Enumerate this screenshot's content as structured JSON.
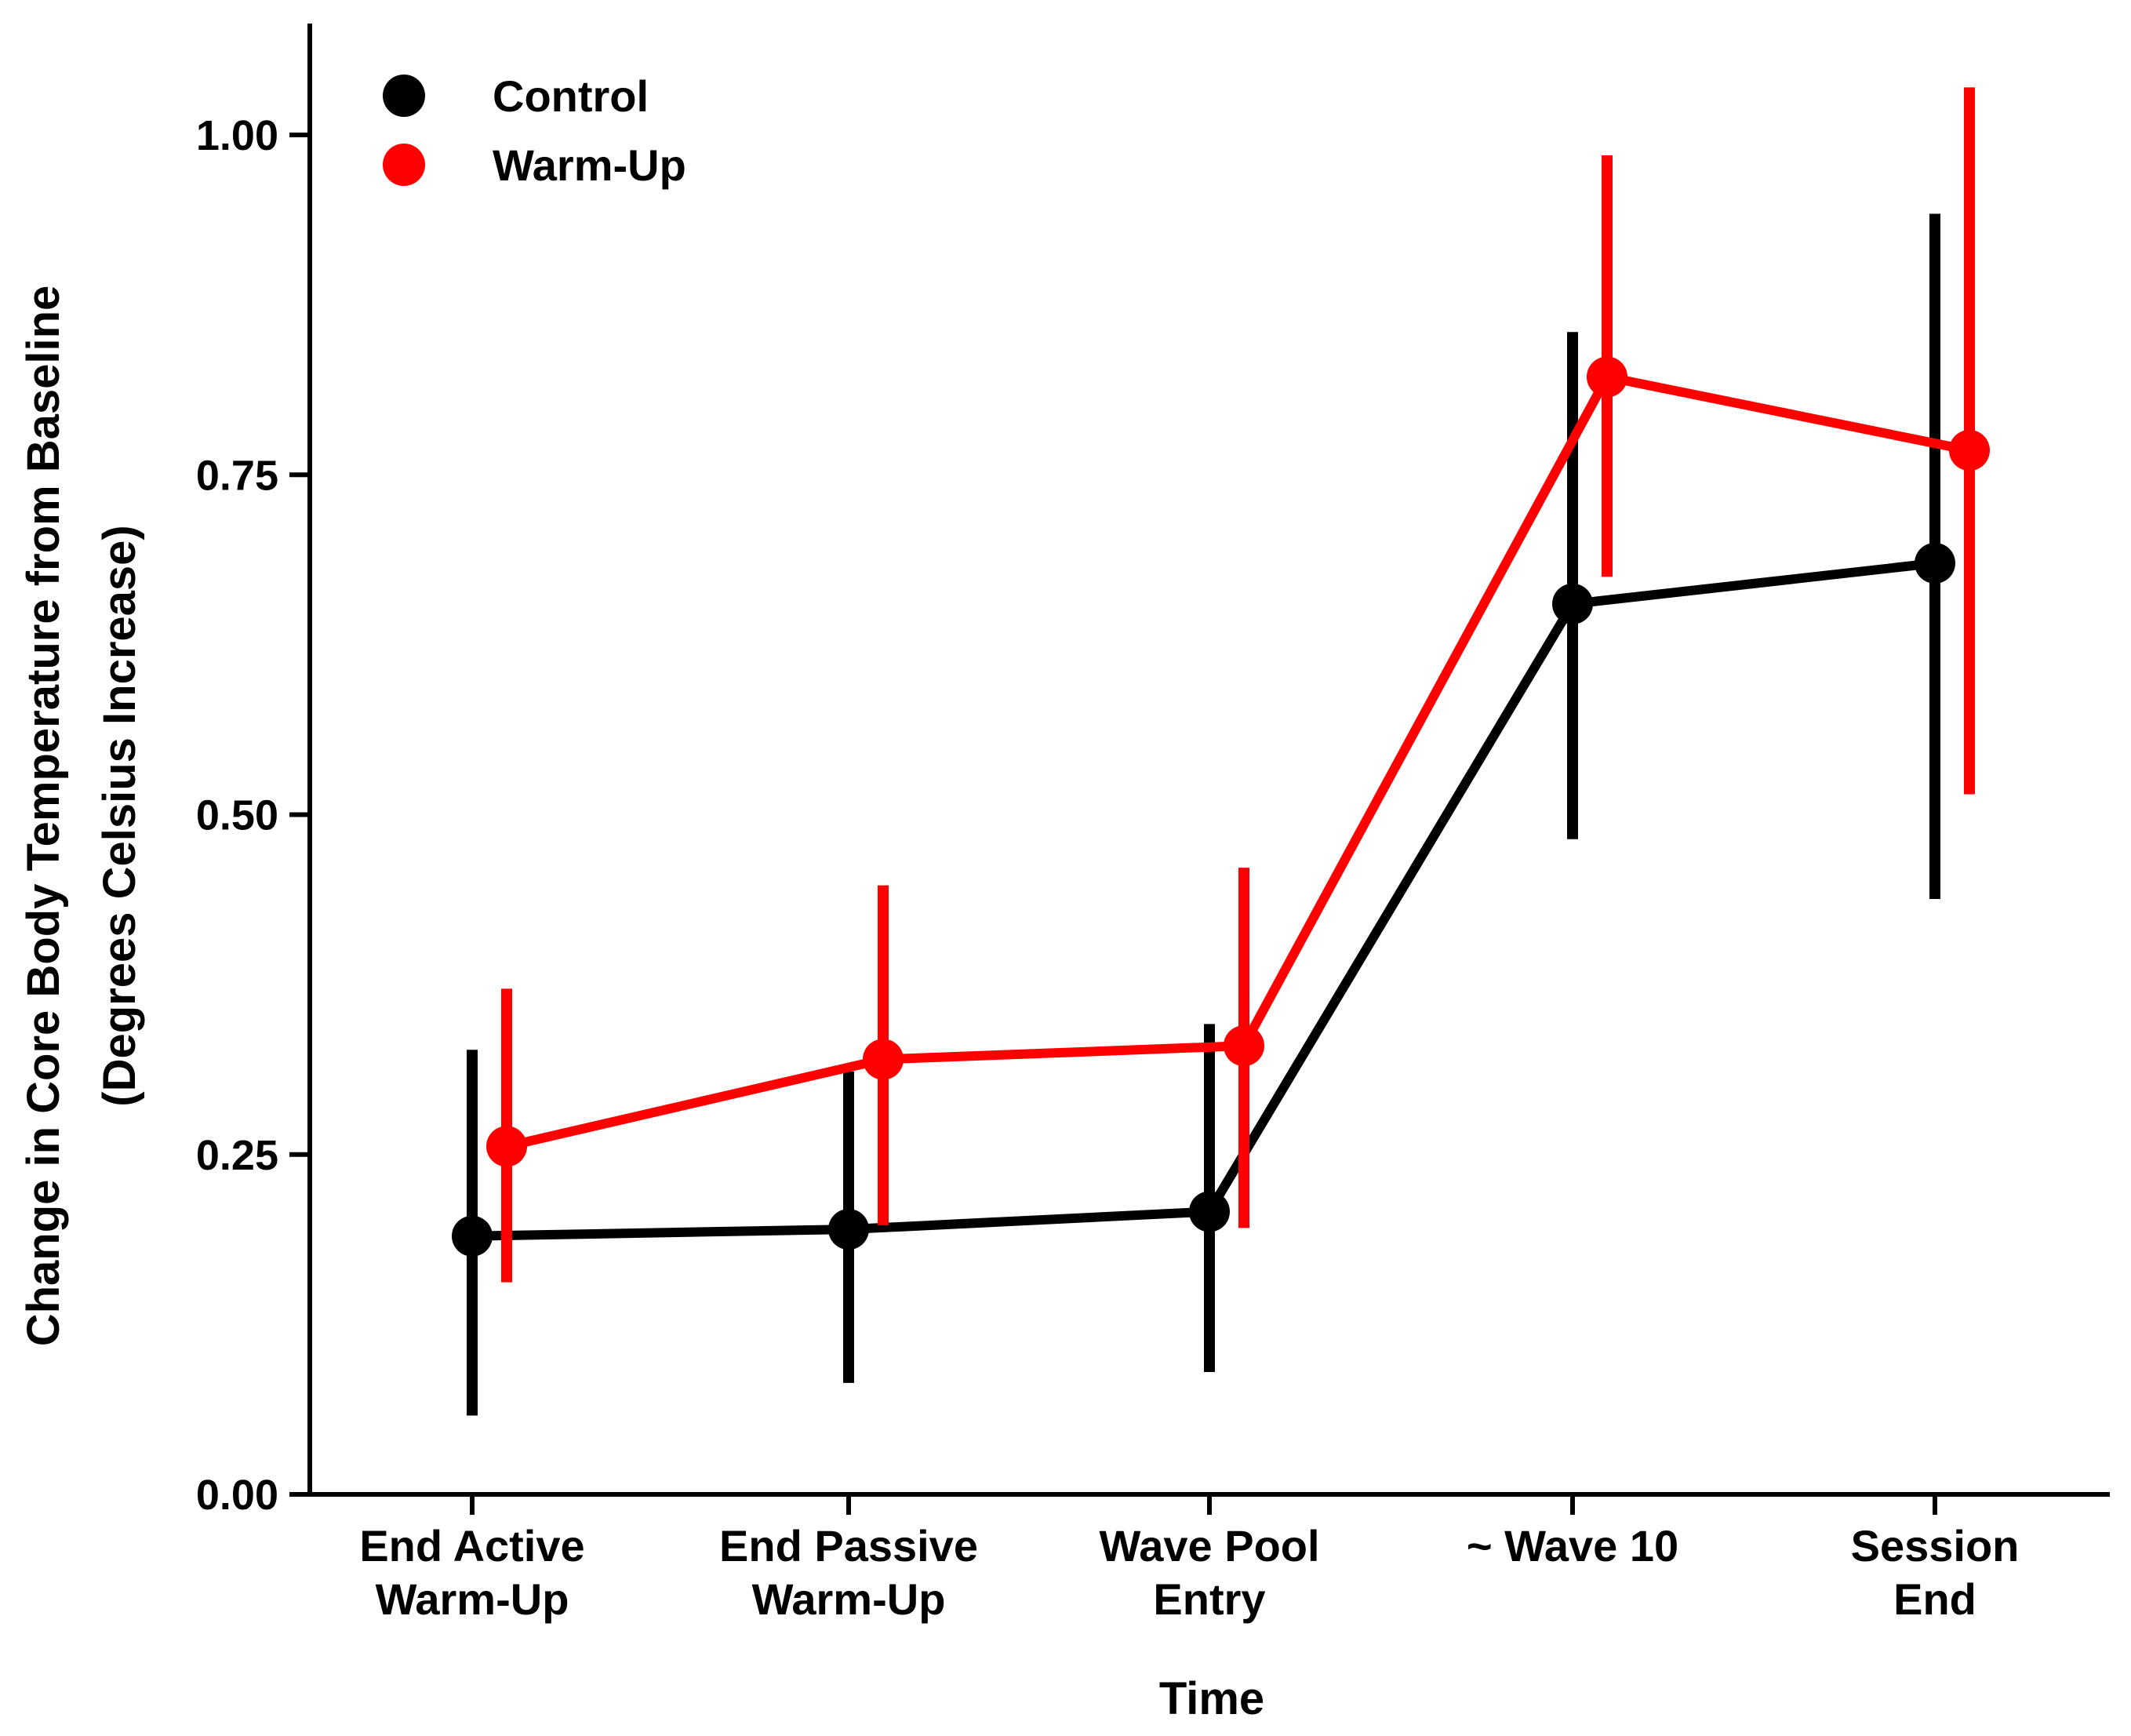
{
  "chart_data": {
    "type": "line",
    "xlabel": "Time",
    "ylabel_lines": [
      "Change in Core Body Temperature from Baseline",
      "(Degrees Celsius Increase)"
    ],
    "ylim": [
      0,
      1.08
    ],
    "yticks": [
      {
        "value": 0,
        "label": "0.00"
      },
      {
        "value": 0.25,
        "label": "0.25"
      },
      {
        "value": 0.5,
        "label": "0.50"
      },
      {
        "value": 0.75,
        "label": "0.75"
      },
      {
        "value": 1.0,
        "label": "1.00"
      }
    ],
    "categories": [
      {
        "lines": [
          "End Active",
          "Warm-Up"
        ]
      },
      {
        "lines": [
          "End Passive",
          "Warm-Up"
        ]
      },
      {
        "lines": [
          "Wave Pool",
          "Entry"
        ]
      },
      {
        "lines": [
          "~ Wave 10"
        ]
      },
      {
        "lines": [
          "Session",
          "End"
        ]
      }
    ],
    "legend_position": "top-left",
    "series": [
      {
        "name": "Control",
        "color": "#000000",
        "values": [
          0.19,
          0.195,
          0.208,
          0.655,
          0.685
        ],
        "error_low": [
          0.058,
          0.082,
          0.09,
          0.482,
          0.438
        ],
        "error_high": [
          0.327,
          0.311,
          0.346,
          0.855,
          0.942
        ]
      },
      {
        "name": "Warm-Up",
        "color": "#ff0000",
        "values": [
          0.256,
          0.32,
          0.33,
          0.822,
          0.768
        ],
        "error_low": [
          0.156,
          0.198,
          0.196,
          0.675,
          0.515
        ],
        "error_high": [
          0.372,
          0.448,
          0.461,
          0.985,
          1.035
        ]
      }
    ]
  }
}
